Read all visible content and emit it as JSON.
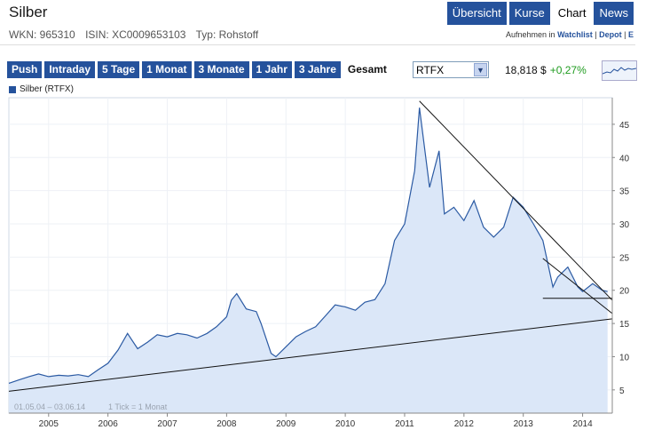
{
  "header": {
    "title": "Silber"
  },
  "nav": {
    "tabs": [
      {
        "label": "Übersicht",
        "active": false
      },
      {
        "label": "Kurse",
        "active": false
      },
      {
        "label": "Chart",
        "active": true
      },
      {
        "label": "News",
        "active": false
      }
    ]
  },
  "meta": {
    "wkn": "WKN: 965310",
    "isin": "ISIN: XC0009653103",
    "typ": "Typ: Rohstoff"
  },
  "actions": {
    "prefix": "Aufnehmen in",
    "watchlist": "Watchlist",
    "sep1": "|",
    "depot": "Depot",
    "sep2": "|",
    "extra": "E"
  },
  "ranges": [
    {
      "label": "Push",
      "active": false
    },
    {
      "label": "Intraday",
      "active": false
    },
    {
      "label": "5 Tage",
      "active": false
    },
    {
      "label": "1 Monat",
      "active": false
    },
    {
      "label": "3 Monate",
      "active": false
    },
    {
      "label": "1 Jahr",
      "active": false
    },
    {
      "label": "3 Jahre",
      "active": false
    },
    {
      "label": "Gesamt",
      "active": true
    }
  ],
  "exchange_select": {
    "value": "RTFX"
  },
  "quote": {
    "price": "18,818 $",
    "change": "+0,27%"
  },
  "colors": {
    "brand": "#25529c",
    "positive": "#1f9b1f",
    "area": "#dbe7f8",
    "line": "#2b5aa3"
  },
  "chart_data": {
    "type": "area",
    "legend": "Silber (RTFX)",
    "footnote_range": "01.05.04 – 03.06.14",
    "footnote_tick": "1 Tick = 1 Monat",
    "x_ticks": [
      "2005",
      "2006",
      "2007",
      "2008",
      "2009",
      "2010",
      "2011",
      "2012",
      "2013",
      "2014"
    ],
    "y_ticks": [
      "5",
      "10",
      "15",
      "20",
      "25",
      "30",
      "35",
      "40",
      "45"
    ],
    "xlim": [
      2004.33,
      2014.5
    ],
    "ylim": [
      1.5,
      49
    ],
    "series": [
      {
        "name": "Silber (RTFX)",
        "x": [
          2004.33,
          2004.5,
          2004.67,
          2004.83,
          2005.0,
          2005.17,
          2005.33,
          2005.5,
          2005.67,
          2005.83,
          2006.0,
          2006.17,
          2006.33,
          2006.5,
          2006.67,
          2006.83,
          2007.0,
          2007.17,
          2007.33,
          2007.5,
          2007.67,
          2007.83,
          2008.0,
          2008.08,
          2008.17,
          2008.33,
          2008.5,
          2008.58,
          2008.75,
          2008.83,
          2009.0,
          2009.17,
          2009.33,
          2009.5,
          2009.67,
          2009.83,
          2010.0,
          2010.17,
          2010.33,
          2010.5,
          2010.67,
          2010.83,
          2011.0,
          2011.17,
          2011.25,
          2011.42,
          2011.58,
          2011.67,
          2011.83,
          2012.0,
          2012.17,
          2012.33,
          2012.5,
          2012.67,
          2012.83,
          2013.0,
          2013.17,
          2013.33,
          2013.5,
          2013.58,
          2013.75,
          2013.92,
          2014.0,
          2014.17,
          2014.33,
          2014.42
        ],
        "values": [
          6.0,
          6.5,
          7.0,
          7.4,
          7.0,
          7.2,
          7.1,
          7.3,
          7.0,
          8.0,
          9.0,
          11.0,
          13.5,
          11.2,
          12.2,
          13.3,
          13.0,
          13.5,
          13.3,
          12.8,
          13.5,
          14.5,
          16.0,
          18.5,
          19.5,
          17.2,
          16.8,
          15.0,
          10.5,
          10.0,
          11.5,
          13.0,
          13.8,
          14.5,
          16.2,
          17.8,
          17.5,
          17.0,
          18.2,
          18.6,
          21.0,
          27.5,
          30.0,
          38.0,
          47.5,
          35.5,
          41.0,
          31.5,
          32.5,
          30.5,
          33.5,
          29.5,
          28.0,
          29.5,
          34.0,
          32.5,
          30.0,
          27.5,
          20.5,
          22.0,
          23.5,
          20.5,
          19.8,
          21.0,
          20.0,
          19.8
        ]
      }
    ],
    "trendlines": [
      {
        "x": [
          2004.33,
          2014.5
        ],
        "values": [
          4.8,
          15.7
        ]
      },
      {
        "x": [
          2011.25,
          2014.5
        ],
        "values": [
          48.5,
          18.5
        ]
      },
      {
        "x": [
          2013.33,
          2014.5
        ],
        "values": [
          24.8,
          16.5
        ]
      },
      {
        "x": [
          2013.33,
          2014.5
        ],
        "values": [
          18.8,
          18.8
        ]
      }
    ]
  }
}
